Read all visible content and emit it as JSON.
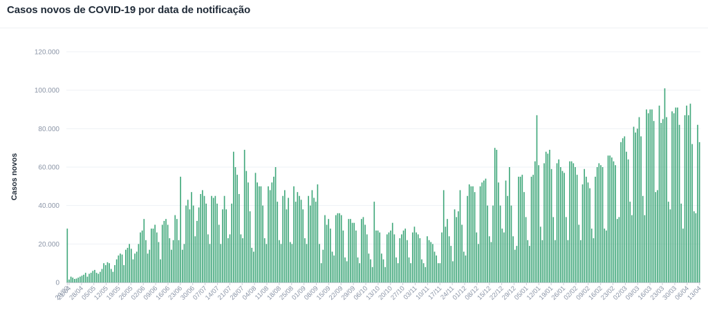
{
  "title": "Casos novos de COVID-19 por data de notificação",
  "colors": {
    "bar": "#3fa77a",
    "grid": "#eef1f4",
    "axis": "#c9ced6"
  },
  "chart_data": {
    "type": "bar",
    "title": "Casos novos de COVID-19 por data de notificação",
    "xlabel": "",
    "ylabel": "Casos novos",
    "ylim": [
      0,
      120000
    ],
    "yticks": [
      "0",
      "20.000",
      "40.000",
      "60.000",
      "80.000",
      "100.000",
      "120.000"
    ],
    "ytick_values": [
      0,
      20000,
      40000,
      60000,
      80000,
      100000,
      120000
    ],
    "grid": true,
    "x_tick_labels": [
      "29/02",
      "21/04",
      "28/04",
      "05/05",
      "12/05",
      "19/05",
      "26/05",
      "02/06",
      "09/06",
      "16/06",
      "23/06",
      "30/06",
      "07/07",
      "14/07",
      "21/07",
      "28/07",
      "04/08",
      "11/08",
      "18/08",
      "25/08",
      "01/09",
      "08/09",
      "15/09",
      "22/09",
      "29/09",
      "06/10",
      "13/10",
      "20/10",
      "27/10",
      "03/11",
      "10/11",
      "17/11",
      "24/11",
      "01/12",
      "08/12",
      "15/12",
      "22/12",
      "29/12",
      "05/01",
      "12/01",
      "19/01",
      "26/01",
      "02/02",
      "09/02",
      "16/02",
      "23/02",
      "02/03",
      "09/03",
      "16/03",
      "23/03",
      "30/03",
      "06/04",
      "13/04"
    ],
    "tick_every_n_bars": 7,
    "first_tick_offset": 0,
    "series": [
      {
        "values": [
          28000,
          1500,
          3000,
          2500,
          1800,
          2000,
          2500,
          3000,
          3500,
          4000,
          5000,
          3000,
          4500,
          5000,
          6000,
          6500,
          5000,
          4500,
          5500,
          7000,
          10000,
          9000,
          10500,
          10000,
          7000,
          5500,
          9000,
          12000,
          14000,
          15000,
          14500,
          9000,
          17000,
          18000,
          20000,
          17500,
          12000,
          15000,
          16000,
          20000,
          26000,
          27000,
          33000,
          22000,
          15000,
          17000,
          28000,
          28000,
          30000,
          26000,
          21000,
          12000,
          30000,
          32000,
          33000,
          30000,
          23000,
          17000,
          22000,
          35000,
          33000,
          22000,
          55000,
          17000,
          20000,
          40000,
          43000,
          38000,
          47000,
          40000,
          24000,
          32000,
          39000,
          46000,
          48000,
          45000,
          41000,
          25000,
          20000,
          45000,
          44000,
          45000,
          41000,
          30000,
          20000,
          38000,
          45000,
          38000,
          23000,
          25000,
          41000,
          68000,
          60000,
          56000,
          46000,
          25000,
          23000,
          69000,
          58000,
          52000,
          37000,
          18000,
          16000,
          57000,
          52000,
          50000,
          50000,
          40000,
          23000,
          20000,
          50000,
          48000,
          52000,
          55000,
          60000,
          42000,
          22000,
          20000,
          45000,
          48000,
          38000,
          44000,
          21000,
          20000,
          50000,
          42000,
          47000,
          45000,
          43000,
          38000,
          23000,
          20000,
          45000,
          40000,
          48000,
          44000,
          42000,
          51000,
          20000,
          10000,
          17000,
          35000,
          30000,
          33000,
          28000,
          16000,
          14000,
          35000,
          36000,
          36000,
          35000,
          27000,
          13000,
          11000,
          33000,
          33000,
          31000,
          31000,
          27000,
          13000,
          10000,
          33000,
          34000,
          30000,
          25000,
          15000,
          12000,
          8000,
          42000,
          27000,
          27000,
          26000,
          15000,
          12000,
          8000,
          25000,
          26000,
          27000,
          31000,
          25000,
          13000,
          10000,
          23000,
          25000,
          27000,
          28000,
          22000,
          13000,
          10000,
          26000,
          29000,
          26000,
          25000,
          23000,
          12000,
          10000,
          8000,
          24000,
          22000,
          21000,
          20000,
          16000,
          14000,
          10000,
          10000,
          26000,
          48000,
          29000,
          33000,
          24000,
          19000,
          11000,
          38000,
          34000,
          37000,
          48000,
          30000,
          16000,
          14000,
          45000,
          51000,
          50000,
          50000,
          47000,
          26000,
          20000,
          50000,
          52000,
          53000,
          54000,
          40000,
          24000,
          21000,
          40000,
          70000,
          69000,
          52000,
          40000,
          28000,
          26000,
          53000,
          45000,
          60000,
          40000,
          24000,
          17000,
          19000,
          55000,
          55000,
          56000,
          47000,
          34000,
          22000,
          19000,
          55000,
          56000,
          63000,
          87000,
          61000,
          29000,
          22000,
          62000,
          68000,
          67000,
          69000,
          59000,
          34000,
          22000,
          62000,
          64000,
          60000,
          58000,
          57000,
          34000,
          22000,
          63000,
          63000,
          62000,
          60000,
          56000,
          30000,
          22000,
          51000,
          59000,
          55000,
          52000,
          49000,
          28000,
          23000,
          55000,
          60000,
          62000,
          61000,
          60000,
          28000,
          27000,
          66000,
          66000,
          65000,
          63000,
          61000,
          33000,
          34000,
          73000,
          75000,
          76000,
          68000,
          64000,
          42000,
          35000,
          81000,
          78000,
          80000,
          86000,
          76000,
          45000,
          35000,
          90000,
          88000,
          90000,
          90000,
          84000,
          47000,
          48000,
          92000,
          83000,
          85000,
          101000,
          86000,
          42000,
          38000,
          89000,
          88000,
          91000,
          91000,
          82000,
          41000,
          28000,
          87000,
          92000,
          87000,
          93000,
          72000,
          37000,
          36000,
          82000,
          73000
        ]
      }
    ]
  }
}
